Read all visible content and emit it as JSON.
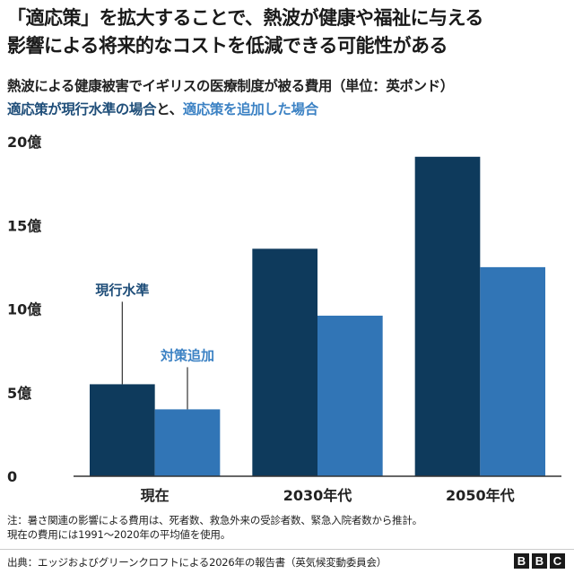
{
  "headline": {
    "line1": "「適応策」を拡大することで、熱波が健康や福祉に与える",
    "line2": "影響による将来的なコストを低減できる可能性がある"
  },
  "subtitle": "熱波による健康被害でイギリスの医療制度が被る費用（単位：英ポンド）",
  "legend_line": {
    "part1": "適応策が現行水準の場合",
    "part2": "と、",
    "part3": "適応策を追加した場合"
  },
  "colors": {
    "current_level": "#0e3a5c",
    "added_measures": "#3175b6",
    "axis": "#333333",
    "legend_text_dark": "#1f4e79",
    "legend_text_light": "#3c82c4"
  },
  "chart_data": {
    "type": "bar",
    "categories": [
      "現在",
      "2030年代",
      "2050年代"
    ],
    "series": [
      {
        "name": "現行水準",
        "values": [
          5.5,
          13.6,
          19.1
        ]
      },
      {
        "name": "対策追加",
        "values": [
          4.0,
          9.6,
          12.5
        ]
      }
    ],
    "ylim": [
      0,
      20
    ],
    "yticks": [
      {
        "value": 0,
        "label": "0"
      },
      {
        "value": 5,
        "label": "5億"
      },
      {
        "value": 10,
        "label": "10億"
      },
      {
        "value": 15,
        "label": "15億"
      },
      {
        "value": 20,
        "label": "20億"
      }
    ],
    "grid": false,
    "annotations": [
      "現行水準",
      "対策追加"
    ]
  },
  "note": {
    "line1": "注：暑さ関連の影響による費用は、死者数、救急外来の受診者数、緊急入院者数から推計。",
    "line2": "現在の費用には1991～2020年の平均値を使用。"
  },
  "source": "出典：エッジおよびグリーンクロフトによる2026年の報告書（英気候変動委員会）",
  "logo": {
    "letters": [
      "B",
      "B",
      "C"
    ]
  }
}
